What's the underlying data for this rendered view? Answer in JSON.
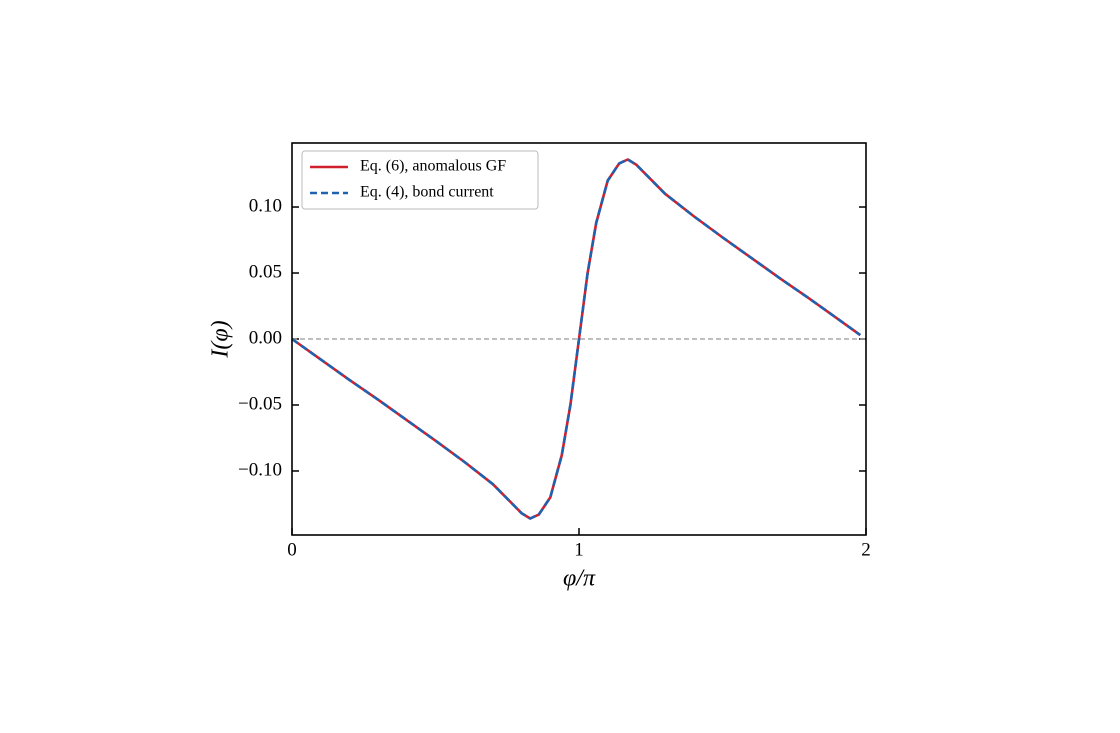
{
  "chart_data": {
    "type": "line",
    "xlabel": "φ/π",
    "ylabel": "I(φ)",
    "x": [
      0,
      0.1,
      0.2,
      0.3,
      0.4,
      0.5,
      0.6,
      0.7,
      0.75,
      0.8,
      0.83,
      0.86,
      0.9,
      0.94,
      0.97,
      1.0,
      1.03,
      1.06,
      1.1,
      1.14,
      1.17,
      1.2,
      1.25,
      1.3,
      1.4,
      1.5,
      1.6,
      1.7,
      1.8,
      1.9,
      1.98
    ],
    "series": [
      {
        "name": "Eq. (6), anomalous GF",
        "color": "#d0202e",
        "dash": false,
        "values": [
          0,
          -0.0155,
          -0.031,
          -0.046,
          -0.0615,
          -0.077,
          -0.093,
          -0.11,
          -0.121,
          -0.132,
          -0.136,
          -0.133,
          -0.12,
          -0.088,
          -0.05,
          0,
          0.05,
          0.088,
          0.12,
          0.133,
          0.136,
          0.132,
          0.121,
          0.11,
          0.093,
          0.077,
          0.0615,
          0.046,
          0.031,
          0.0155,
          0.003
        ]
      },
      {
        "name": "Eq. (4), bond current",
        "color": "#1f63b0",
        "dash": true,
        "values": [
          0,
          -0.0155,
          -0.031,
          -0.046,
          -0.0615,
          -0.077,
          -0.093,
          -0.11,
          -0.121,
          -0.132,
          -0.136,
          -0.133,
          -0.12,
          -0.088,
          -0.05,
          0,
          0.05,
          0.088,
          0.12,
          0.133,
          0.136,
          0.132,
          0.121,
          0.11,
          0.093,
          0.077,
          0.0615,
          0.046,
          0.031,
          0.0155,
          0.003
        ]
      }
    ],
    "xlim": [
      0,
      2
    ],
    "xticks": [
      0,
      1,
      2
    ],
    "ylim": [
      -0.1485,
      0.1485
    ],
    "yticks": [
      {
        "value": -0.1,
        "label": "−0.10"
      },
      {
        "value": -0.05,
        "label": "−0.05"
      },
      {
        "value": 0,
        "label": "0.00"
      },
      {
        "value": 0.05,
        "label": "0.05"
      },
      {
        "value": 0.1,
        "label": "0.10"
      }
    ],
    "zero_line": true,
    "legend": "upper left"
  }
}
